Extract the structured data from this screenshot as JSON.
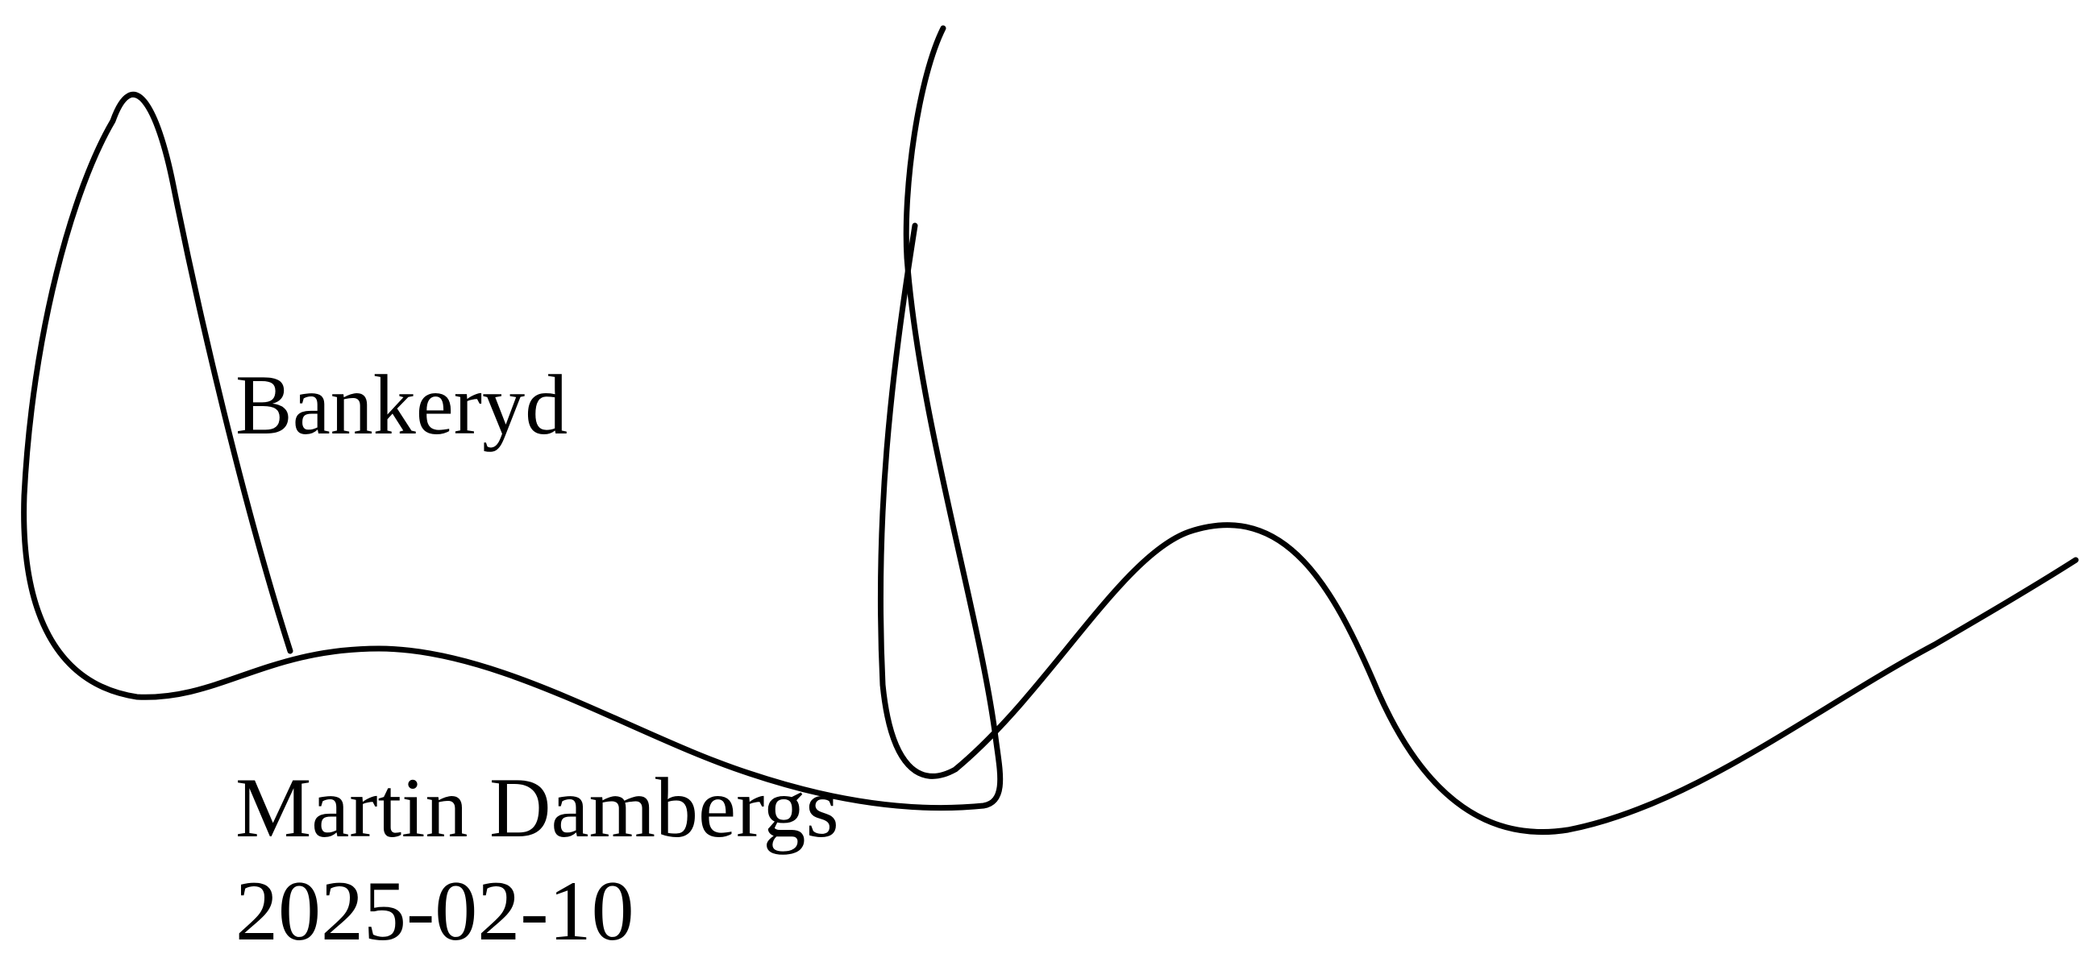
{
  "signature": {
    "place": "Bankeryd",
    "signer_name": "Martin Dambergs",
    "date": "2025-02-10",
    "stroke_color": "#000000",
    "icon": "handwritten-signature"
  }
}
